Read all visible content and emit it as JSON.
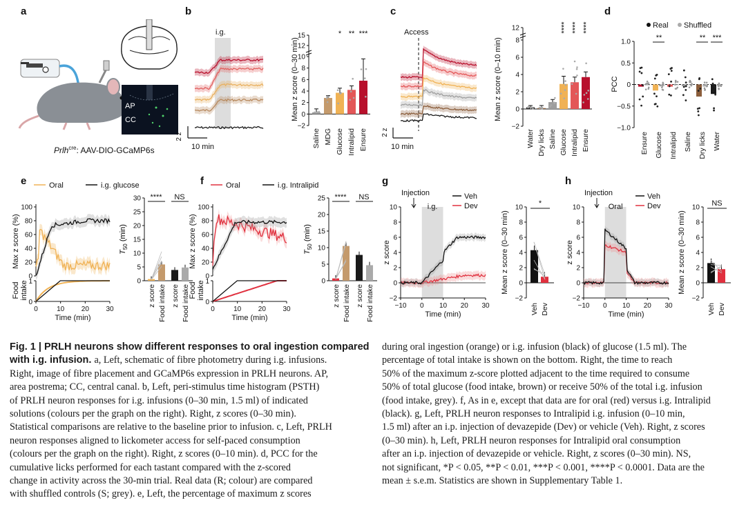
{
  "panel_letters": [
    "a",
    "b",
    "c",
    "d",
    "e",
    "f",
    "g",
    "h"
  ],
  "panel_a": {
    "label_ap": "AP",
    "label_cc": "CC",
    "caption_italic": "Prlh",
    "caption_sup": "cre",
    "caption_rest": ": AAV-DIO-GCaMP6s"
  },
  "chart_data": [
    {
      "id": "b-psth",
      "type": "line",
      "annotation": "i.g.",
      "scalebar_y": "2 z",
      "scalebar_x": "10 min",
      "colors": [
        "#1a1a1a",
        "#b7895e",
        "#e8b060",
        "#e0605f",
        "#b8102c"
      ]
    },
    {
      "id": "b-bars",
      "type": "bar",
      "categories": [
        "Saline",
        "MDG",
        "Glucose",
        "Intralipid",
        "Ensure"
      ],
      "values": [
        0.3,
        2.8,
        3.7,
        4.2,
        5.8
      ],
      "errors": [
        0.6,
        0.4,
        0.8,
        0.7,
        3.8
      ],
      "significance": [
        "",
        "",
        "*",
        "**",
        "***"
      ],
      "significance_top": [
        "",
        "",
        "",
        "",
        "***"
      ],
      "colors": [
        "#9e9e9e",
        "#c49a6c",
        "#f0b255",
        "#e35758",
        "#b8102c"
      ],
      "ylabel": "Mean z score (0–30 min)",
      "yticks": [
        "−2",
        "0",
        "2",
        "4",
        "6",
        "8",
        "10",
        "12",
        "15"
      ]
    },
    {
      "id": "c-trace",
      "type": "line",
      "annotation": "Access",
      "scalebar_y": "2 z",
      "scalebar_x": "10 min"
    },
    {
      "id": "c-bars",
      "type": "bar",
      "categories": [
        "Water",
        "Dry licks",
        "Saline",
        "Glucose",
        "Intralipid",
        "Ensure"
      ],
      "values": [
        0.2,
        0.1,
        0.8,
        2.9,
        3.1,
        3.7
      ],
      "errors": [
        0.2,
        0.3,
        0.3,
        0.9,
        0.6,
        0.6
      ],
      "significance": [
        "",
        "",
        "",
        "****",
        "****",
        "****"
      ],
      "colors": [
        "#1a1a1a",
        "#8b5e3c",
        "#9e9e9e",
        "#f0b255",
        "#e35758",
        "#b8102c"
      ],
      "ylabel": "Mean z score (0–10 min)",
      "yticks": [
        "−2",
        "0",
        "2",
        "4",
        "6",
        "8",
        "12"
      ]
    },
    {
      "id": "d-pcc",
      "type": "bar",
      "legend": [
        "Real",
        "Shuffled"
      ],
      "categories": [
        "Ensure",
        "Glucose",
        "Intralipid",
        "Saline",
        "Dry licks",
        "Water"
      ],
      "real": [
        -0.05,
        -0.14,
        -0.05,
        -0.04,
        -0.28,
        -0.22
      ],
      "shuffled": [
        -0.02,
        -0.04,
        0.0,
        0.0,
        -0.05,
        -0.03
      ],
      "significance": [
        "",
        "**",
        "",
        "",
        "**",
        "***"
      ],
      "ylabel": "PCC",
      "yticks": [
        "−1.0",
        "−0.5",
        "0",
        "0.5",
        "1.0"
      ]
    },
    {
      "id": "e-line",
      "type": "line",
      "legend": [
        "Oral",
        "i.g. glucose"
      ],
      "ylabel": "Max z score (%)",
      "ylabel2": "Food intake",
      "xlabel": "Time (min)",
      "xticks": [
        "0",
        "10",
        "20",
        "30"
      ],
      "yticks": [
        "0",
        "20",
        "40",
        "60",
        "80",
        "100"
      ]
    },
    {
      "id": "e-bars",
      "type": "bar",
      "categories": [
        "z score",
        "Food intake",
        "z score",
        "Food intake"
      ],
      "values": [
        0.6,
        5.9,
        3.9,
        4.8
      ],
      "significance": [
        "****",
        "NS"
      ],
      "ylabel": "T50 (min)",
      "yticks": [
        "0",
        "5",
        "10",
        "15",
        "20",
        "25",
        "30"
      ]
    },
    {
      "id": "f-line",
      "type": "line",
      "legend": [
        "Oral",
        "i.g. Intralipid"
      ],
      "ylabel": "Max z score (%)",
      "ylabel2": "Food intake",
      "xlabel": "Time (min)",
      "xticks": [
        "0",
        "10",
        "20",
        "30"
      ],
      "yticks": [
        "0",
        "20",
        "40",
        "60",
        "80",
        "100"
      ]
    },
    {
      "id": "f-bars",
      "type": "bar",
      "categories": [
        "z score",
        "Food intake",
        "z score",
        "Food intake"
      ],
      "values": [
        0.7,
        10.5,
        7.8,
        4.7
      ],
      "significance": [
        "****",
        "NS"
      ],
      "ylabel": "T50 (min)",
      "yticks": [
        "0",
        "5",
        "10",
        "15",
        "20",
        "25"
      ]
    },
    {
      "id": "g-line",
      "type": "line",
      "annotations": [
        "Injection",
        "i.g."
      ],
      "legend": [
        "Veh",
        "Dev"
      ],
      "ylabel": "z score",
      "xlabel": "Time (min)",
      "xticks": [
        "−10",
        "0",
        "10",
        "20",
        "30"
      ],
      "yticks": [
        "−2",
        "0",
        "2",
        "4",
        "6",
        "8",
        "10"
      ]
    },
    {
      "id": "g-bars",
      "type": "bar",
      "categories": [
        "Veh",
        "Dev"
      ],
      "values": [
        4.3,
        0.8
      ],
      "significance": [
        "*"
      ],
      "ylabel": "Mean z score (0–30 min)",
      "yticks": [
        "−2",
        "0",
        "2",
        "4",
        "6",
        "8",
        "10"
      ]
    },
    {
      "id": "h-line",
      "type": "line",
      "annotations": [
        "Injection",
        "Oral"
      ],
      "legend": [
        "Veh",
        "Dev"
      ],
      "ylabel": "z score",
      "xlabel": "Time (min)",
      "xticks": [
        "−10",
        "0",
        "10",
        "20",
        "30"
      ],
      "yticks": [
        "−2",
        "0",
        "2",
        "4",
        "6",
        "8",
        "10"
      ]
    },
    {
      "id": "h-bars",
      "type": "bar",
      "categories": [
        "Veh",
        "Dev"
      ],
      "values": [
        2.6,
        1.8
      ],
      "significance": [
        "NS"
      ],
      "ylabel": "Mean z score (0–30 min)",
      "yticks": [
        "−2",
        "0",
        "2",
        "4",
        "6",
        "8",
        "10"
      ]
    }
  ],
  "caption_left": [
    "Fig. 1 | PRLH neurons show different responses to oral ingestion compared",
    "with i.g. infusion. a, Left, schematic of fibre photometry during i.g. infusions.",
    "Right, image of fibre placement and GCaMP6s expression in PRLH neurons. AP,",
    "area postrema; CC, central canal. b, Left, peri-stimulus time histogram (PSTH)",
    "of PRLH neuron responses for i.g. infusions (0–30 min, 1.5 ml) of indicated",
    "solutions (colours per the graph on the right). Right, z scores (0–30 min).",
    "Statistical comparisons are relative to the baseline prior to infusion. c, Left, PRLH",
    "neuron responses aligned to lickometer access for self-paced consumption",
    "(colours per the graph on the right). Right, z scores (0–10 min). d, PCC for the",
    "cumulative licks performed for each tastant compared with the z-scored",
    "change in activity across the 30-min trial. Real data (R; colour) are compared",
    "with shuffled controls (S; grey). e, Left, the percentage of maximum z scores"
  ],
  "caption_right": [
    "during oral ingestion (orange) or i.g. infusion (black) of glucose (1.5 ml). The",
    "percentage of total intake is shown on the bottom. Right, the time to reach",
    "50% of the maximum z-score plotted adjacent to the time required to consume",
    "50% of total glucose (food intake, brown) or receive 50% of the total i.g. infusion",
    "(food intake, grey). f, As in e, except that data are for oral (red) versus i.g. Intralipid",
    "(black). g, Left, PRLH neuron responses to Intralipid i.g. infusion (0–10 min,",
    "1.5 ml) after an i.p. injection of devazepide (Dev) or vehicle (Veh). Right, z scores",
    "(0–30 min). h, Left, PRLH neuron responses for Intralipid oral consumption",
    "after an i.p. injection of devazepide or vehicle. Right, z scores (0–30 min). NS,",
    "not significant, *P < 0.05, **P < 0.01, ***P < 0.001, ****P < 0.0001. Data are the",
    "mean ± s.e.m. Statistics are shown in Supplementary Table 1."
  ]
}
